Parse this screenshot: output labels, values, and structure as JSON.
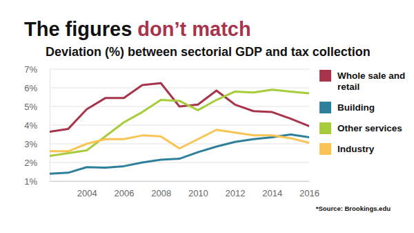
{
  "chart_data": {
    "type": "line",
    "title": "The figures don’t match",
    "subtitle": "Deviation (%) between sectorial GDP and tax collection",
    "source": "*Source: Brookings.edu",
    "x": [
      2002,
      2003,
      2004,
      2005,
      2006,
      2007,
      2008,
      2009,
      2010,
      2011,
      2012,
      2013,
      2014,
      2015,
      2016
    ],
    "series": [
      {
        "name": "Whole sale and retail",
        "color": "#a8344b",
        "values": [
          3.65,
          3.8,
          4.85,
          5.45,
          5.45,
          6.15,
          6.25,
          5.0,
          5.1,
          5.85,
          5.1,
          4.75,
          4.7,
          4.35,
          3.95
        ]
      },
      {
        "name": "Building",
        "color": "#2e7f9a",
        "values": [
          1.4,
          1.45,
          1.75,
          1.72,
          1.8,
          2.0,
          2.15,
          2.2,
          2.55,
          2.85,
          3.1,
          3.25,
          3.35,
          3.5,
          3.35
        ]
      },
      {
        "name": "Other services",
        "color": "#a7cc3b",
        "values": [
          2.35,
          2.5,
          2.65,
          3.4,
          4.15,
          4.7,
          5.35,
          5.3,
          4.8,
          5.35,
          5.8,
          5.75,
          5.9,
          5.8,
          5.7
        ]
      },
      {
        "name": "Industry",
        "color": "#f9c453",
        "values": [
          2.6,
          2.6,
          3.0,
          3.25,
          3.25,
          3.45,
          3.4,
          2.75,
          3.25,
          3.75,
          3.6,
          3.45,
          3.45,
          3.3,
          3.05
        ]
      }
    ],
    "xlim": [
      2002,
      2016
    ],
    "xticks": [
      2004,
      2006,
      2008,
      2010,
      2012,
      2014,
      2016
    ],
    "ylim": [
      1,
      7
    ],
    "yticks": [
      {
        "value": 1,
        "label": "1%"
      },
      {
        "value": 2,
        "label": "2%"
      },
      {
        "value": 3,
        "label": "3%"
      },
      {
        "value": 4,
        "label": "4%"
      },
      {
        "value": 5,
        "label": "5%"
      },
      {
        "value": 6,
        "label": "6%"
      },
      {
        "value": 7,
        "label": "7%"
      }
    ],
    "grid": true,
    "legend": "right"
  }
}
